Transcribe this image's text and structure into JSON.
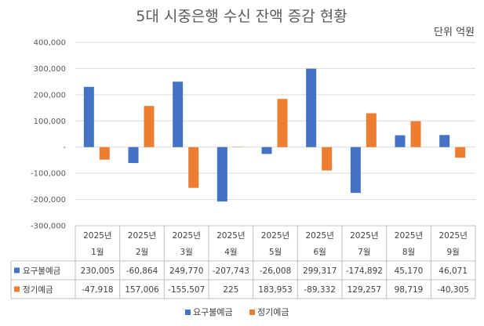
{
  "chart_data": {
    "type": "bar",
    "title": "5대 시중은행 수신 잔액 증감 현황",
    "unit_label": "단위 억원",
    "categories": [
      [
        "2025년",
        "1월"
      ],
      [
        "2025년",
        "2월"
      ],
      [
        "2025년",
        "3월"
      ],
      [
        "2025년",
        "4월"
      ],
      [
        "2025년",
        "5월"
      ],
      [
        "2025년",
        "6월"
      ],
      [
        "2025년",
        "7월"
      ],
      [
        "2025년",
        "8월"
      ],
      [
        "2025년",
        "9월"
      ]
    ],
    "series": [
      {
        "name": "요구불예금",
        "color": "#4472C4",
        "values": [
          230005,
          -60864,
          249770,
          -207743,
          -26008,
          299317,
          -174892,
          45170,
          46071
        ],
        "labels": [
          "230,005",
          "-60,864",
          "249,770",
          "-207,743",
          "-26,008",
          "299,317",
          "-174,892",
          "45,170",
          "46,071"
        ]
      },
      {
        "name": "정기예금",
        "color": "#ED7D31",
        "values": [
          -47918,
          157006,
          -155507,
          225,
          183953,
          -89332,
          129257,
          98719,
          -40305
        ],
        "labels": [
          "-47,918",
          "157,006",
          "-155,507",
          "225",
          "183,953",
          "-89,332",
          "129,257",
          "98,719",
          "-40,305"
        ]
      }
    ],
    "y_ticks": [
      400000,
      300000,
      200000,
      100000,
      0,
      -100000,
      -200000,
      -300000
    ],
    "y_tick_labels": [
      "400,000",
      "300,000",
      "200,000",
      "100,000",
      "-",
      "-100,000",
      "-200,000",
      "-300,000"
    ],
    "ylim": [
      -300000,
      400000
    ],
    "grid": true,
    "legend": "bottom",
    "data_table": true
  }
}
